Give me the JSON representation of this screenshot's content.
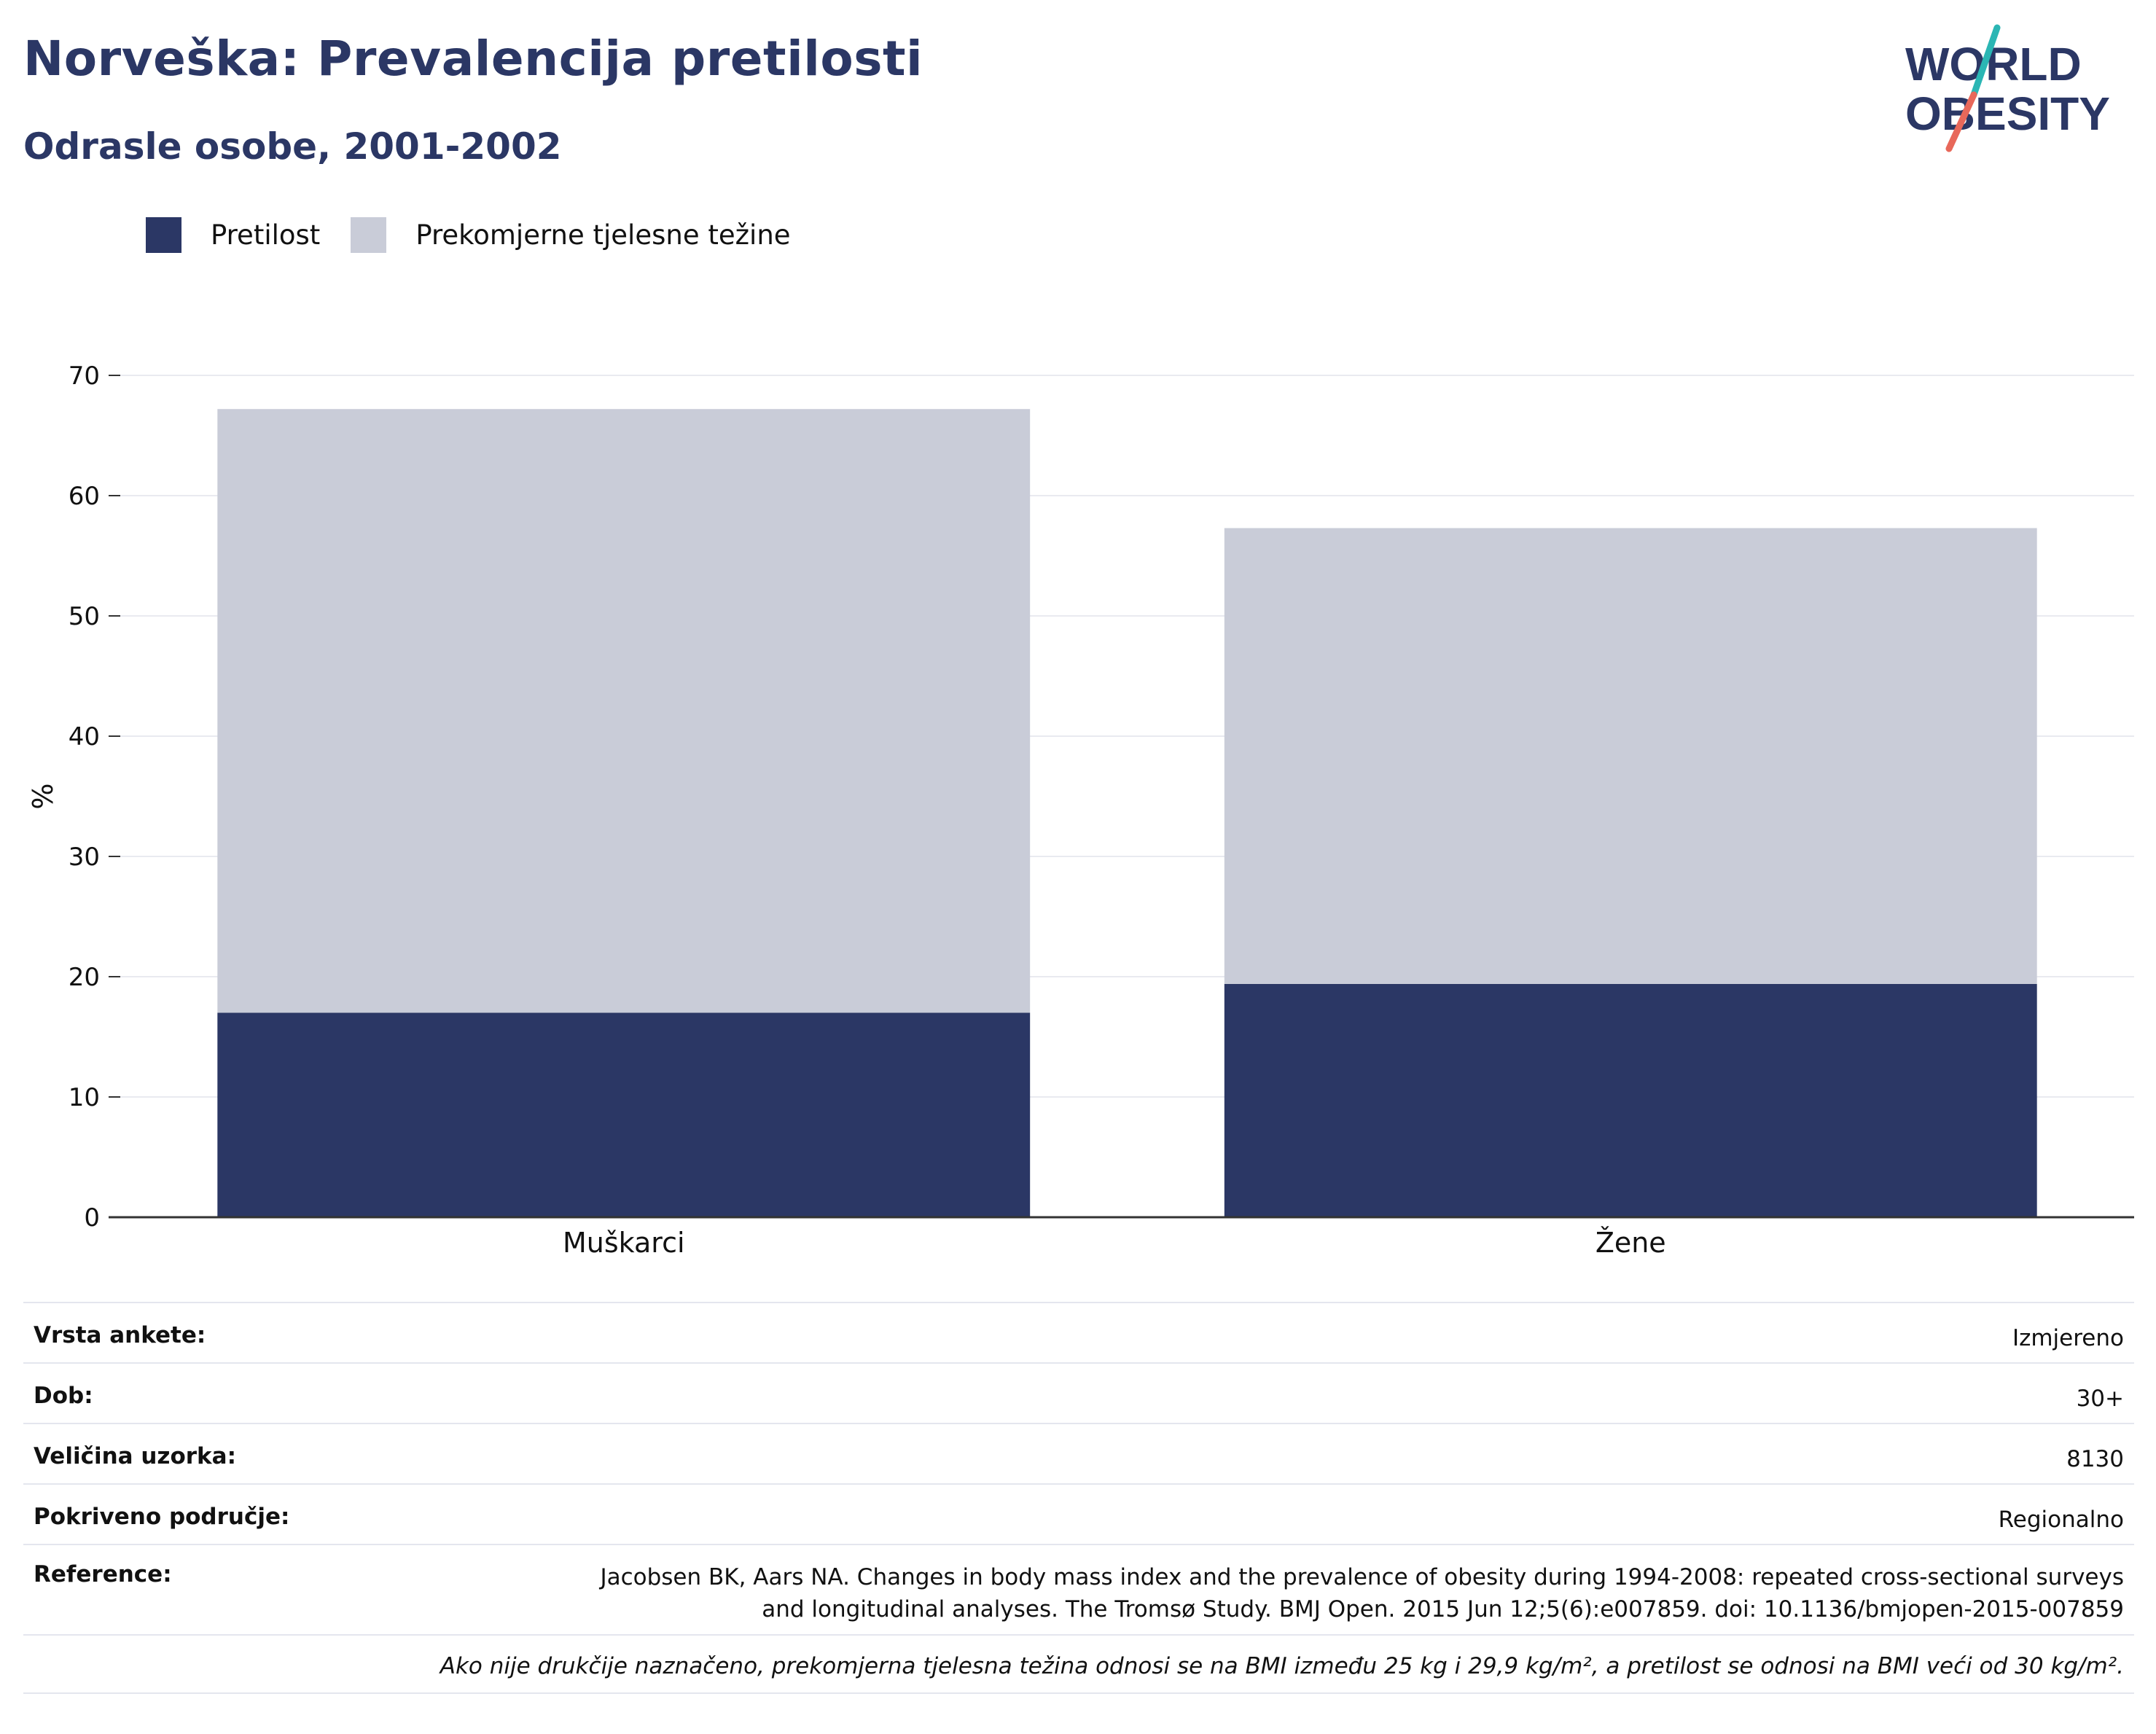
{
  "header": {
    "title": "Norveška: Prevalencija pretilosti",
    "subtitle": "Odrasle osobe, 2001-2002"
  },
  "logo": {
    "line1": "WORLD",
    "line2": "OBESITY",
    "colors": {
      "text": "#2b3765",
      "slash_top": "#2bb6b4",
      "slash_bottom": "#e8685a"
    }
  },
  "legend": [
    {
      "label": "Pretilost",
      "color": "#2b3765"
    },
    {
      "label": "Prekomjerne tjelesne težine",
      "color": "#c9ccd8"
    }
  ],
  "chart_data": {
    "type": "bar",
    "stacked": true,
    "categories": [
      "Muškarci",
      "Žene"
    ],
    "series": [
      {
        "name": "Pretilost",
        "values": [
          17.0,
          19.4
        ],
        "color": "#2b3765"
      },
      {
        "name": "Prekomjerne tjelesne težine",
        "values": [
          50.2,
          37.9
        ],
        "color": "#c9ccd8"
      }
    ],
    "ylabel": "%",
    "xlabel": "",
    "ylim": [
      0,
      70
    ],
    "yticks": [
      0,
      10,
      20,
      30,
      40,
      50,
      60,
      70
    ],
    "grid": true,
    "legend_position": "top-left"
  },
  "info": {
    "survey_type_label": "Vrsta ankete:",
    "survey_type_value": "Izmjereno",
    "age_label": "Dob:",
    "age_value": "30+",
    "sample_label": "Veličina uzorka:",
    "sample_value": "8130",
    "coverage_label": "Pokriveno područje:",
    "coverage_value": "Regionalno",
    "reference_label": "Reference:",
    "reference_line1": "Jacobsen BK, Aars NA. Changes in body mass index and the prevalence of obesity during 1994-2008: repeated cross-sectional surveys",
    "reference_line2": "and longitudinal analyses. The Tromsø Study. BMJ Open. 2015 Jun 12;5(6):e007859. doi: 10.1136/bmjopen-2015-007859",
    "note": "Ako nije drukčije naznačeno, prekomjerna tjelesna težina odnosi se na BMI između 25 kg i 29,9 kg/m², a pretilost se odnosi na BMI veći od 30 kg/m²."
  }
}
